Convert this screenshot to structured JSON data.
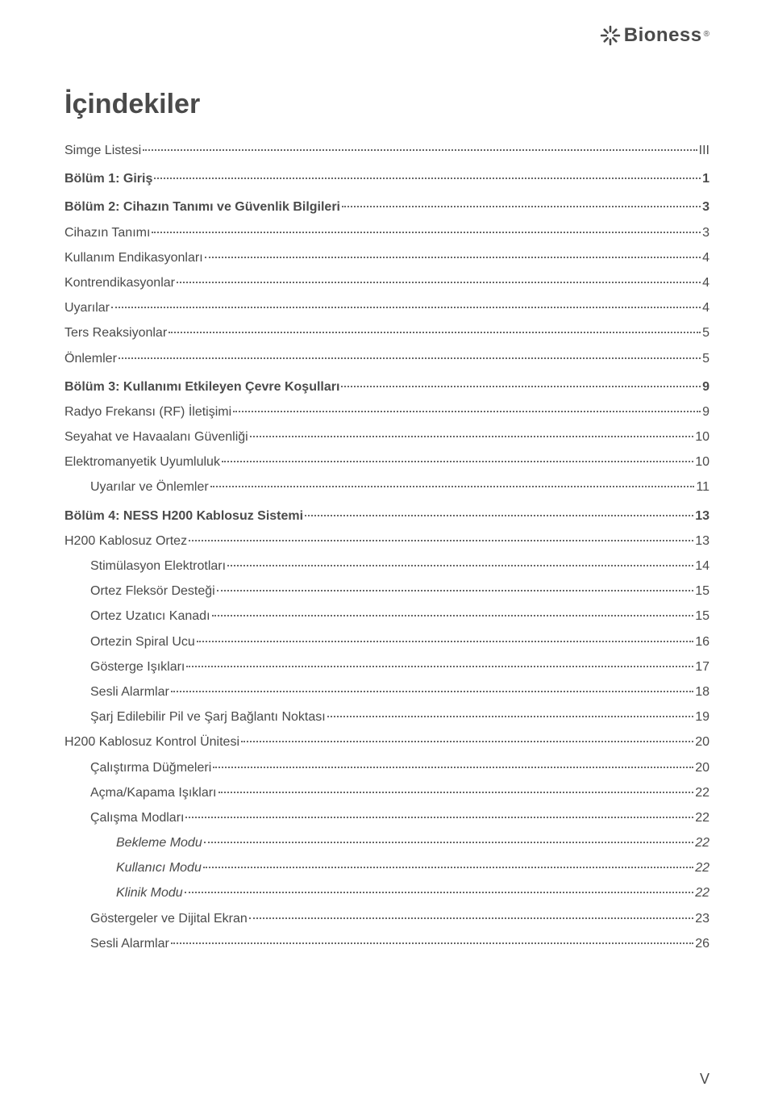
{
  "logo": {
    "name": "Bioness",
    "registered": "®"
  },
  "title": "İçindekiler",
  "page_footer": "V",
  "colors": {
    "text": "#4a4a4a",
    "leader": "#666666",
    "background": "#ffffff"
  },
  "toc": [
    {
      "label": "Simge Listesi",
      "page": "III",
      "level": 0,
      "bold": false,
      "italic": false
    },
    {
      "label": "Bölüm 1: Giriş",
      "page": "1",
      "level": 0,
      "bold": true,
      "italic": false
    },
    {
      "label": "Bölüm 2: Cihazın Tanımı ve Güvenlik Bilgileri",
      "page": "3",
      "level": 0,
      "bold": true,
      "italic": false
    },
    {
      "label": "Cihazın Tanımı",
      "page": "3",
      "level": 1,
      "bold": false,
      "italic": false
    },
    {
      "label": "Kullanım Endikasyonları",
      "page": "4",
      "level": 1,
      "bold": false,
      "italic": false
    },
    {
      "label": "Kontrendikasyonlar",
      "page": "4",
      "level": 1,
      "bold": false,
      "italic": false
    },
    {
      "label": "Uyarılar",
      "page": "4",
      "level": 1,
      "bold": false,
      "italic": false
    },
    {
      "label": "Ters Reaksiyonlar",
      "page": "5",
      "level": 1,
      "bold": false,
      "italic": false
    },
    {
      "label": "Önlemler",
      "page": "5",
      "level": 1,
      "bold": false,
      "italic": false
    },
    {
      "label": "Bölüm 3: Kullanımı Etkileyen Çevre Koşulları",
      "page": "9",
      "level": 0,
      "bold": true,
      "italic": false
    },
    {
      "label": "Radyo Frekansı (RF) İletişimi",
      "page": "9",
      "level": 1,
      "bold": false,
      "italic": false
    },
    {
      "label": "Seyahat ve Havaalanı Güvenliği",
      "page": "10",
      "level": 1,
      "bold": false,
      "italic": false
    },
    {
      "label": "Elektromanyetik Uyumluluk",
      "page": "10",
      "level": 1,
      "bold": false,
      "italic": false
    },
    {
      "label": "Uyarılar ve Önlemler",
      "page": "11",
      "level": 2,
      "bold": false,
      "italic": false
    },
    {
      "label": "Bölüm 4: NESS H200 Kablosuz Sistemi",
      "page": "13",
      "level": 0,
      "bold": true,
      "italic": false
    },
    {
      "label": "H200 Kablosuz Ortez",
      "page": "13",
      "level": 1,
      "bold": false,
      "italic": false
    },
    {
      "label": "Stimülasyon Elektrotları",
      "page": "14",
      "level": 2,
      "bold": false,
      "italic": false
    },
    {
      "label": "Ortez Fleksör Desteği",
      "page": "15",
      "level": 2,
      "bold": false,
      "italic": false
    },
    {
      "label": "Ortez Uzatıcı Kanadı",
      "page": "15",
      "level": 2,
      "bold": false,
      "italic": false
    },
    {
      "label": "Ortezin Spiral Ucu",
      "page": "16",
      "level": 2,
      "bold": false,
      "italic": false
    },
    {
      "label": "Gösterge Işıkları",
      "page": "17",
      "level": 2,
      "bold": false,
      "italic": false
    },
    {
      "label": "Sesli Alarmlar",
      "page": "18",
      "level": 2,
      "bold": false,
      "italic": false
    },
    {
      "label": "Şarj Edilebilir Pil ve Şarj Bağlantı Noktası",
      "page": "19",
      "level": 2,
      "bold": false,
      "italic": false
    },
    {
      "label": "H200 Kablosuz Kontrol Ünitesi",
      "page": "20",
      "level": 1,
      "bold": false,
      "italic": false
    },
    {
      "label": "Çalıştırma Düğmeleri",
      "page": "20",
      "level": 2,
      "bold": false,
      "italic": false
    },
    {
      "label": "Açma/Kapama Işıkları",
      "page": "22",
      "level": 2,
      "bold": false,
      "italic": false
    },
    {
      "label": "Çalışma Modları",
      "page": "22",
      "level": 2,
      "bold": false,
      "italic": false
    },
    {
      "label": "Bekleme Modu",
      "page": "22",
      "level": 3,
      "bold": false,
      "italic": true
    },
    {
      "label": "Kullanıcı Modu",
      "page": "22",
      "level": 3,
      "bold": false,
      "italic": true
    },
    {
      "label": "Klinik Modu",
      "page": "22",
      "level": 3,
      "bold": false,
      "italic": true
    },
    {
      "label": "Göstergeler ve Dijital Ekran",
      "page": "23",
      "level": 2,
      "bold": false,
      "italic": false
    },
    {
      "label": "Sesli Alarmlar",
      "page": "26",
      "level": 2,
      "bold": false,
      "italic": false
    }
  ]
}
